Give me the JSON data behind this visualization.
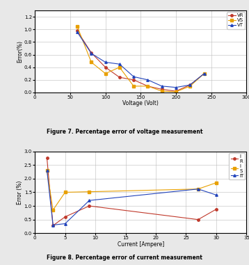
{
  "fig7": {
    "title": "Figure 7. Percentage error of voltage measurement",
    "xlabel": "Voltage (Volt)",
    "ylabel": "Error(%)",
    "xlim": [
      0,
      300
    ],
    "ylim": [
      0,
      1.3
    ],
    "yticks": [
      0,
      0.2,
      0.4,
      0.6,
      0.8,
      1.0,
      1.2
    ],
    "xticks": [
      0,
      50,
      100,
      150,
      200,
      250,
      300
    ],
    "series": {
      "VR": {
        "x": [
          60,
          80,
          100,
          120,
          140,
          160,
          180,
          200,
          220,
          240
        ],
        "y": [
          0.98,
          0.63,
          0.4,
          0.24,
          0.2,
          0.1,
          0.05,
          0.02,
          0.12,
          0.3
        ],
        "color": "#c0392b",
        "marker": "o",
        "label": "VR"
      },
      "VS": {
        "x": [
          60,
          80,
          100,
          120,
          140,
          160,
          180,
          200,
          220,
          240
        ],
        "y": [
          1.05,
          0.48,
          0.3,
          0.4,
          0.1,
          0.1,
          0.02,
          0.01,
          0.1,
          0.3
        ],
        "color": "#e8a000",
        "marker": "s",
        "label": "VS"
      },
      "VT": {
        "x": [
          60,
          80,
          100,
          120,
          140,
          160,
          180,
          200,
          220,
          240
        ],
        "y": [
          0.96,
          0.62,
          0.48,
          0.45,
          0.25,
          0.2,
          0.1,
          0.08,
          0.12,
          0.3
        ],
        "color": "#2244bb",
        "marker": "^",
        "label": "VT"
      }
    }
  },
  "fig8": {
    "title": "Figure 8. Percentage error of current measurement",
    "xlabel": "Current [Ampere]",
    "ylabel": "Error (%)",
    "xlim": [
      0,
      35
    ],
    "ylim": [
      0,
      3.0
    ],
    "yticks": [
      0,
      0.5,
      1.0,
      1.5,
      2.0,
      2.5,
      3.0
    ],
    "xticks": [
      0,
      5,
      10,
      15,
      20,
      25,
      30,
      35
    ],
    "series": {
      "IR": {
        "x": [
          2,
          3,
          5,
          9,
          27,
          30
        ],
        "y": [
          2.75,
          0.28,
          0.6,
          1.0,
          0.5,
          0.88
        ],
        "color": "#c0392b",
        "marker": "o",
        "label": "I\nR"
      },
      "IS": {
        "x": [
          2,
          3,
          5,
          9,
          27,
          30
        ],
        "y": [
          2.3,
          0.85,
          1.5,
          1.52,
          1.62,
          1.85
        ],
        "color": "#e8a000",
        "marker": "s",
        "label": "I\nS"
      },
      "IT": {
        "x": [
          2,
          3,
          5,
          9,
          27,
          30
        ],
        "y": [
          2.3,
          0.3,
          0.35,
          1.2,
          1.62,
          1.4
        ],
        "color": "#2244bb",
        "marker": "^",
        "label": "IT"
      }
    }
  },
  "bg_color": "#e8e8e8"
}
